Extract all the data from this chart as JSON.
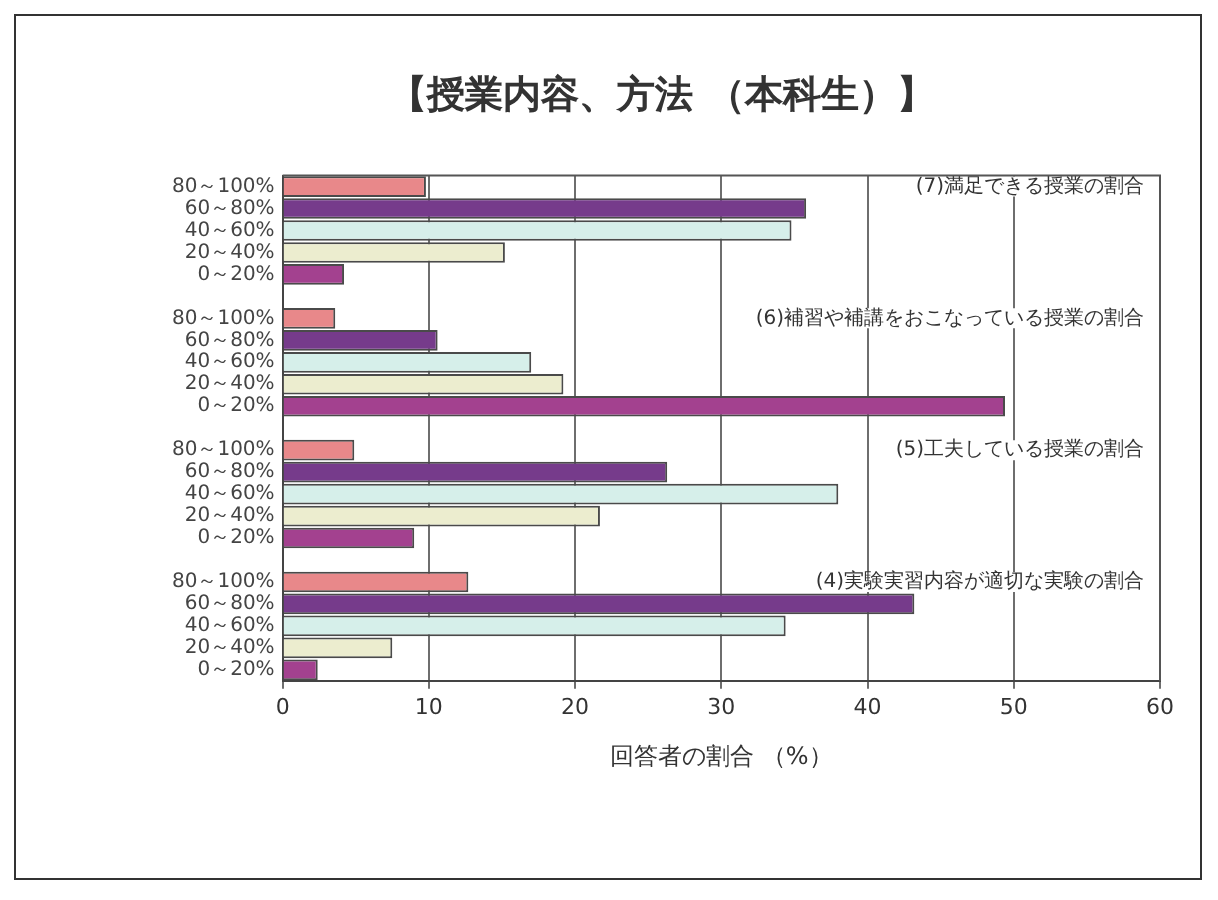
{
  "chart_data": {
    "type": "bar",
    "orientation": "horizontal",
    "title": "【授業内容、方法 （本科生）】",
    "xlabel": "回答者の割合 （%）",
    "categories": [
      "80～100%",
      "60～80%",
      "40～60%",
      "20～40%",
      "0～20%",
      null,
      "80～100%",
      "60～80%",
      "40～60%",
      "20～40%",
      "0～20%",
      null,
      "80～100%",
      "60～80%",
      "40～60%",
      "20～40%",
      "0～20%",
      null,
      "80～100%",
      "60～80%",
      "40～60%",
      "20～40%",
      "0～20%"
    ],
    "values": [
      9.8,
      35.8,
      34.8,
      15.2,
      4.2,
      null,
      3.6,
      10.6,
      17.0,
      19.2,
      49.4,
      null,
      4.9,
      26.3,
      38.0,
      21.7,
      9.0,
      null,
      12.7,
      43.2,
      34.4,
      7.5,
      2.4
    ],
    "colors": [
      "#e8888a",
      "#763b8b",
      "#d6efea",
      "#ecedcf",
      "#a3418f",
      null,
      "#e8888a",
      "#763b8b",
      "#d6efea",
      "#ecedcf",
      "#a3418f",
      null,
      "#e8888a",
      "#763b8b",
      "#d6efea",
      "#ecedcf",
      "#a3418f",
      null,
      "#e8888a",
      "#763b8b",
      "#d6efea",
      "#ecedcf",
      "#a3418f"
    ],
    "xlim": [
      0,
      60
    ],
    "xticks": [
      0,
      10,
      20,
      30,
      40,
      50,
      60
    ],
    "grid": "x",
    "annotations": [
      "(7)満足できる授業の割合",
      "(6)補習や補講をおこなっている授業の割合",
      "(5)工夫している授業の割合",
      "(4)実験実習内容が適切な実験の割合"
    ]
  }
}
